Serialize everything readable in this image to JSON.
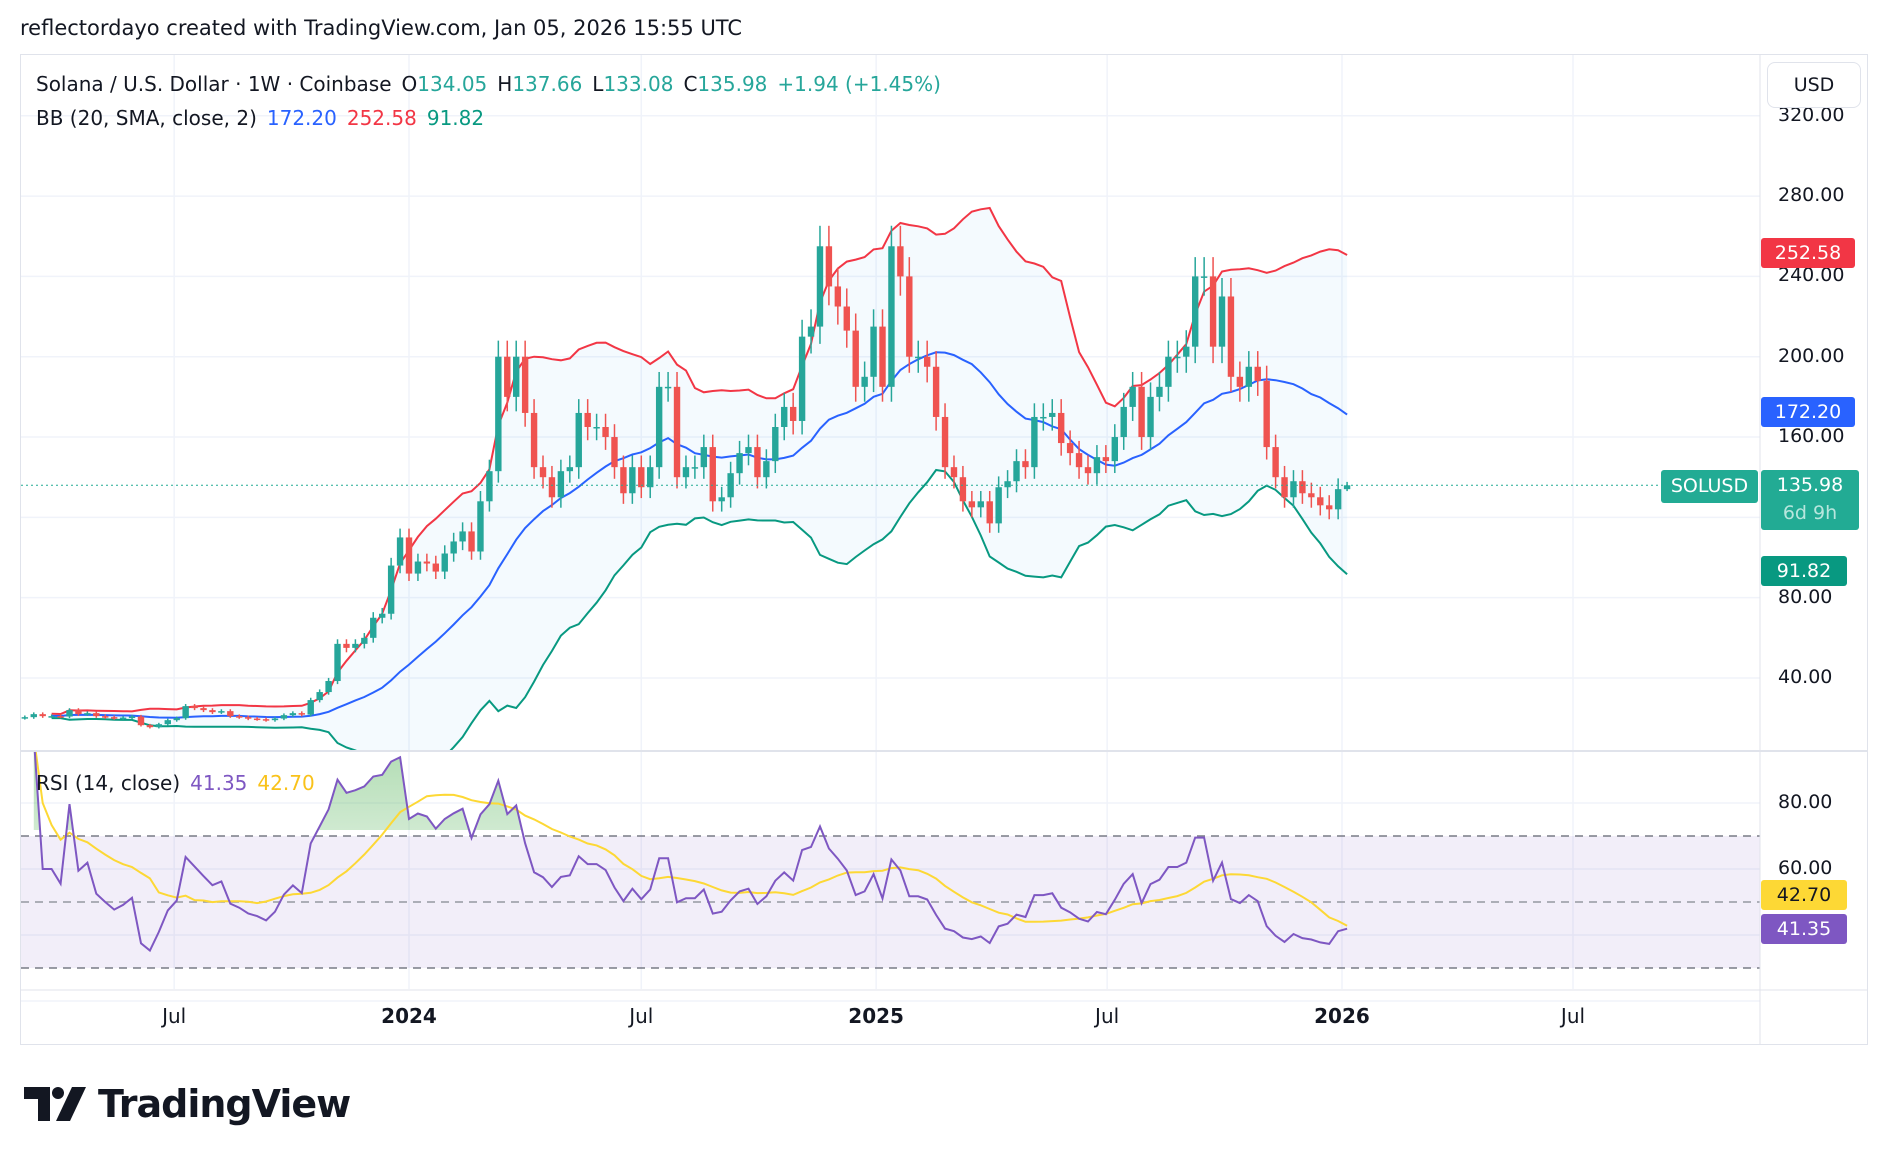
{
  "header": {
    "title": "reflectordayo created with TradingView.com, Jan 05, 2026 15:55 UTC"
  },
  "legend": {
    "symbol": "Solana / U.S. Dollar · 1W · Coinbase",
    "open_label": "O",
    "open": "134.05",
    "high_label": "H",
    "high": "137.66",
    "low_label": "L",
    "low": "133.08",
    "close_label": "C",
    "close": "135.98",
    "change": "+1.94 (+1.45%)",
    "bb_label": "BB (20, SMA, close, 2)",
    "bb_basis": "172.20",
    "bb_upper": "252.58",
    "bb_lower": "91.82",
    "rsi_label": "RSI (14, close)",
    "rsi_value": "41.35",
    "rsi_ma": "42.70"
  },
  "price_axis": {
    "currency_button": "USD",
    "ticks": [
      "320.00",
      "280.00",
      "240.00",
      "200.00",
      "160.00",
      "80.00",
      "40.00"
    ],
    "symbol_tag": "SOLUSD",
    "last_price": "135.98",
    "countdown": "6d 9h",
    "bb_upper_tag": "252.58",
    "bb_basis_tag": "172.20",
    "bb_lower_tag": "91.82"
  },
  "rsi_axis": {
    "ticks": [
      "80.00",
      "60.00"
    ],
    "rsi_ma_tag": "42.70",
    "rsi_tag": "41.35"
  },
  "time_axis": {
    "labels": [
      {
        "text": "Jul",
        "date": "2023-07-01",
        "bold": false
      },
      {
        "text": "2024",
        "date": "2024-01-01",
        "bold": true
      },
      {
        "text": "Jul",
        "date": "2024-07-01",
        "bold": false
      },
      {
        "text": "2025",
        "date": "2025-01-01",
        "bold": true
      },
      {
        "text": "Jul",
        "date": "2025-07-01",
        "bold": false
      },
      {
        "text": "2026",
        "date": "2026-01-01",
        "bold": true
      },
      {
        "text": "Jul",
        "date": "2026-07-01",
        "bold": false
      }
    ]
  },
  "footer": {
    "logo": "TradingView"
  },
  "colors": {
    "up": "#26a69a",
    "down": "#ef5350",
    "bb_upper": "#f23645",
    "bb_basis": "#2962ff",
    "bb_lower": "#089981",
    "rsi": "#7e57c2",
    "rsi_ma": "#fdd835",
    "last_price": "#22ab94"
  },
  "chart_data": {
    "type": "candlestick",
    "interval": "1W",
    "last_week": "2026-01-05",
    "last_candle": {
      "open": 134.05,
      "high": 137.66,
      "low": 133.08,
      "close": 135.98
    },
    "closes": [
      20.5,
      22,
      21,
      21,
      20.8,
      24,
      22,
      22.5,
      21,
      20.5,
      20,
      20.3,
      20.8,
      16.5,
      15.5,
      17,
      19,
      20,
      26,
      25,
      24,
      23,
      23.5,
      21,
      20.5,
      19.8,
      19.5,
      19,
      19.8,
      21.5,
      22.5,
      21.8,
      29,
      33,
      38.5,
      57,
      55,
      57,
      60,
      70,
      72,
      96,
      110,
      92,
      98,
      97,
      93,
      102,
      108,
      113,
      103,
      128,
      143,
      200,
      180,
      200,
      172,
      145,
      140,
      130,
      143,
      145,
      172,
      165,
      165,
      160,
      145,
      132,
      145,
      135,
      145,
      185,
      185,
      140,
      145,
      145,
      155,
      128,
      130,
      142,
      152,
      155,
      140,
      148,
      165,
      175,
      168,
      210,
      215,
      255,
      235,
      225,
      213,
      185,
      190,
      215,
      185,
      255,
      240,
      200,
      200,
      195,
      170,
      145,
      140,
      128,
      125,
      128,
      117,
      135,
      138,
      148,
      145,
      170,
      170,
      172,
      157,
      152,
      145,
      142,
      150,
      148,
      160,
      175,
      185,
      160,
      180,
      185,
      200,
      200,
      205,
      240,
      240,
      205,
      230,
      190,
      185,
      195,
      188,
      155,
      140,
      130,
      138,
      132,
      130,
      126,
      124,
      134.05,
      135.98
    ],
    "bollinger": {
      "length": 20,
      "ma": "SMA",
      "source": "close",
      "mult": 2
    },
    "rsi": {
      "length": 14,
      "source": "close",
      "overbought": 70,
      "middle": 50,
      "oversold": 30
    },
    "price_range": [
      0,
      320
    ],
    "rsi_range": [
      0,
      100
    ],
    "scale": "linear",
    "grid": true
  }
}
